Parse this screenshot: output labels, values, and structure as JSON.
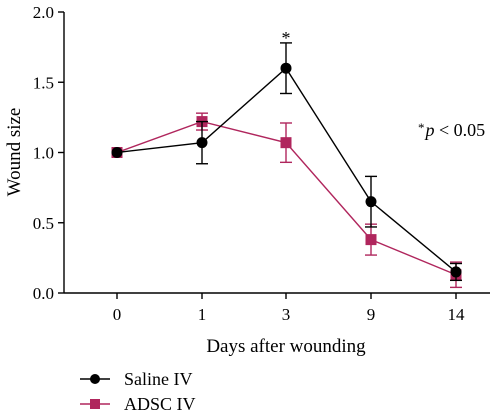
{
  "chart_data": {
    "type": "line",
    "categories": [
      "0",
      "1",
      "3",
      "9",
      "14"
    ],
    "xlabel": "Days after wounding",
    "ylabel": "Wound size",
    "ylim": [
      0,
      2.0
    ],
    "yticks": [
      "0.0",
      "0.5",
      "1.0",
      "1.5",
      "2.0"
    ],
    "grid": false,
    "legend_position": "bottom-left",
    "series": [
      {
        "name": "Saline IV",
        "marker": "circle",
        "color": "#000000",
        "values": [
          1.0,
          1.07,
          1.6,
          0.65,
          0.15
        ],
        "errors": [
          0,
          0.15,
          0.18,
          0.18,
          0.06
        ]
      },
      {
        "name": "ADSC IV",
        "marker": "square",
        "color": "#b0265d",
        "values": [
          1.0,
          1.22,
          1.07,
          0.38,
          0.13
        ],
        "errors": [
          0,
          0.06,
          0.14,
          0.11,
          0.09
        ]
      }
    ],
    "annotations": [
      {
        "text": "*",
        "at_category": "3"
      },
      {
        "text": "*p < 0.05",
        "prefix": "*",
        "symbol": "p",
        "rest": " < 0.05"
      }
    ]
  }
}
